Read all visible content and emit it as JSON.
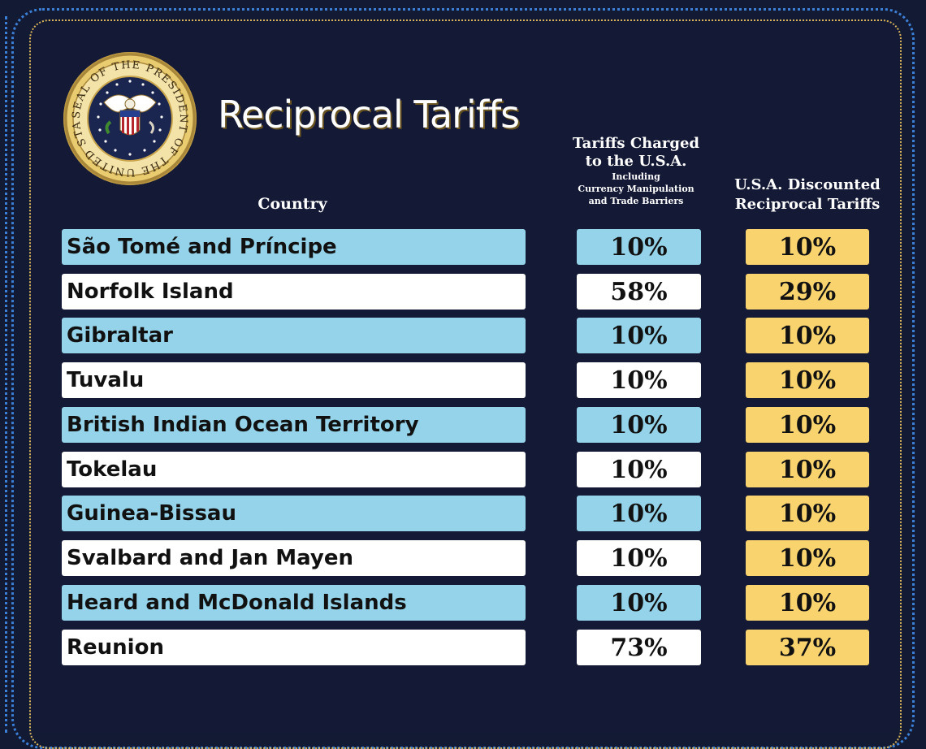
{
  "title": "Reciprocal Tariffs",
  "seal": {
    "icon": "presidential-seal-icon",
    "text": "SEAL OF THE PRESIDENT OF THE UNITED STATES"
  },
  "headers": {
    "country": "Country",
    "charged_line1": "Tariffs Charged",
    "charged_line2": "to the U.S.A.",
    "charged_sub1": "Including",
    "charged_sub2": "Currency Manipulation",
    "charged_sub3": "and Trade Barriers",
    "reciprocal_line1": "U.S.A. Discounted",
    "reciprocal_line2": "Reciprocal Tariffs"
  },
  "colors": {
    "background": "#131a33",
    "row_blue": "#94d3e9",
    "row_white": "#ffffff",
    "reciprocal_gold": "#f9d36e",
    "border_blue": "#3b7fd6",
    "border_gold": "#d9b45a"
  },
  "chart_data": {
    "type": "table",
    "title": "Reciprocal Tariffs",
    "columns": [
      "Country",
      "Tariffs Charged to the U.S.A. Including Currency Manipulation and Trade Barriers",
      "U.S.A. Discounted Reciprocal Tariffs"
    ],
    "rows": [
      {
        "country": "São Tomé and Príncipe",
        "charged": "10%",
        "reciprocal": "10%"
      },
      {
        "country": "Norfolk Island",
        "charged": "58%",
        "reciprocal": "29%"
      },
      {
        "country": "Gibraltar",
        "charged": "10%",
        "reciprocal": "10%"
      },
      {
        "country": "Tuvalu",
        "charged": "10%",
        "reciprocal": "10%"
      },
      {
        "country": "British Indian Ocean Territory",
        "charged": "10%",
        "reciprocal": "10%"
      },
      {
        "country": "Tokelau",
        "charged": "10%",
        "reciprocal": "10%"
      },
      {
        "country": "Guinea-Bissau",
        "charged": "10%",
        "reciprocal": "10%"
      },
      {
        "country": "Svalbard and Jan Mayen",
        "charged": "10%",
        "reciprocal": "10%"
      },
      {
        "country": "Heard and McDonald Islands",
        "charged": "10%",
        "reciprocal": "10%"
      },
      {
        "country": "Reunion",
        "charged": "73%",
        "reciprocal": "37%"
      }
    ]
  }
}
